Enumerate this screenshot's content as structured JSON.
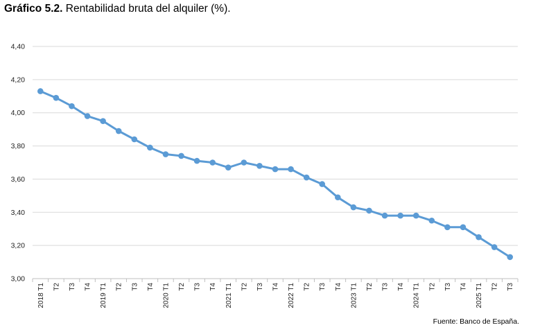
{
  "title": {
    "lead": "Gráfico 5.2.",
    "text": "Rentabilidad bruta del alquiler (%)."
  },
  "source": "Fuente: Banco de España.",
  "colors": {
    "line": "#5b9bd5",
    "grid": "#d9d9d9",
    "axis": "#bfbfbf"
  },
  "chart_data": {
    "type": "line",
    "title": "Rentabilidad bruta del alquiler (%).",
    "xlabel": "",
    "ylabel": "",
    "ylim": [
      3.0,
      4.4
    ],
    "yticks": [
      "3,00",
      "3,20",
      "3,40",
      "3,60",
      "3,80",
      "4,00",
      "4,20",
      "4,40"
    ],
    "ytick_values": [
      3.0,
      3.2,
      3.4,
      3.6,
      3.8,
      4.0,
      4.2,
      4.4
    ],
    "grid": true,
    "legend": "none",
    "categories": [
      "2018 T1",
      "T2",
      "T3",
      "T4",
      "2019 T1",
      "T2",
      "T3",
      "T4",
      "2020 T1",
      "T2",
      "T3",
      "T4",
      "2021 T1",
      "T2",
      "T3",
      "T4",
      "2022 T1",
      "T2",
      "T3",
      "T4",
      "2023 T1",
      "T2",
      "T3",
      "T4",
      "2024 T1",
      "T2",
      "T3",
      "T4",
      "2025 T1",
      "T2",
      "T3"
    ],
    "series": [
      {
        "values": [
          4.13,
          4.09,
          4.04,
          3.98,
          3.95,
          3.89,
          3.84,
          3.79,
          3.75,
          3.74,
          3.71,
          3.7,
          3.67,
          3.7,
          3.68,
          3.66,
          3.66,
          3.61,
          3.57,
          3.49,
          3.43,
          3.41,
          3.38,
          3.38,
          3.38,
          3.35,
          3.31,
          3.31,
          3.25,
          3.19,
          3.13
        ]
      }
    ]
  }
}
